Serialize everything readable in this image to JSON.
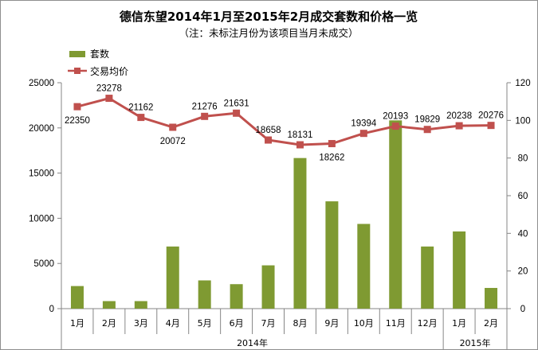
{
  "chart_data": {
    "type": "bar+line",
    "title": "德信东望2014年1月至2015年2月成交套数和价格一览",
    "subtitle": "（注：未标注月份为该项目当月未成交）",
    "categories": [
      "1月",
      "2月",
      "3月",
      "4月",
      "5月",
      "6月",
      "7月",
      "8月",
      "9月",
      "10月",
      "11月",
      "12月",
      "1月",
      "2月"
    ],
    "groups": [
      {
        "label": "2014年",
        "span": 12
      },
      {
        "label": "2015年",
        "span": 2
      }
    ],
    "y_left": {
      "min": 0,
      "max": 25000,
      "ticks": [
        "0",
        "5000",
        "10000",
        "15000",
        "20000",
        "25000"
      ]
    },
    "y_right": {
      "min": 0,
      "max": 120,
      "ticks": [
        "0",
        "20",
        "40",
        "60",
        "80",
        "100",
        "120"
      ]
    },
    "grid": false,
    "legend_position": "top-left",
    "series": [
      {
        "name": "套数",
        "type": "bar",
        "axis": "right",
        "color": "#7f9a32",
        "values": [
          12,
          4,
          4,
          33,
          15,
          13,
          23,
          80,
          57,
          45,
          100,
          33,
          41,
          11
        ]
      },
      {
        "name": "交易均价",
        "type": "line",
        "axis": "left",
        "color": "#c0504d",
        "values": [
          22350,
          23278,
          21162,
          20072,
          21276,
          21631,
          18658,
          18131,
          18262,
          19394,
          20193,
          19829,
          20238,
          20276
        ],
        "labels": [
          "22350",
          "23278",
          "21162",
          "20072",
          "21276",
          "21631",
          "18658",
          "18131",
          "18262",
          "19394",
          "20193",
          "19829",
          "20238",
          "20276"
        ]
      }
    ]
  }
}
